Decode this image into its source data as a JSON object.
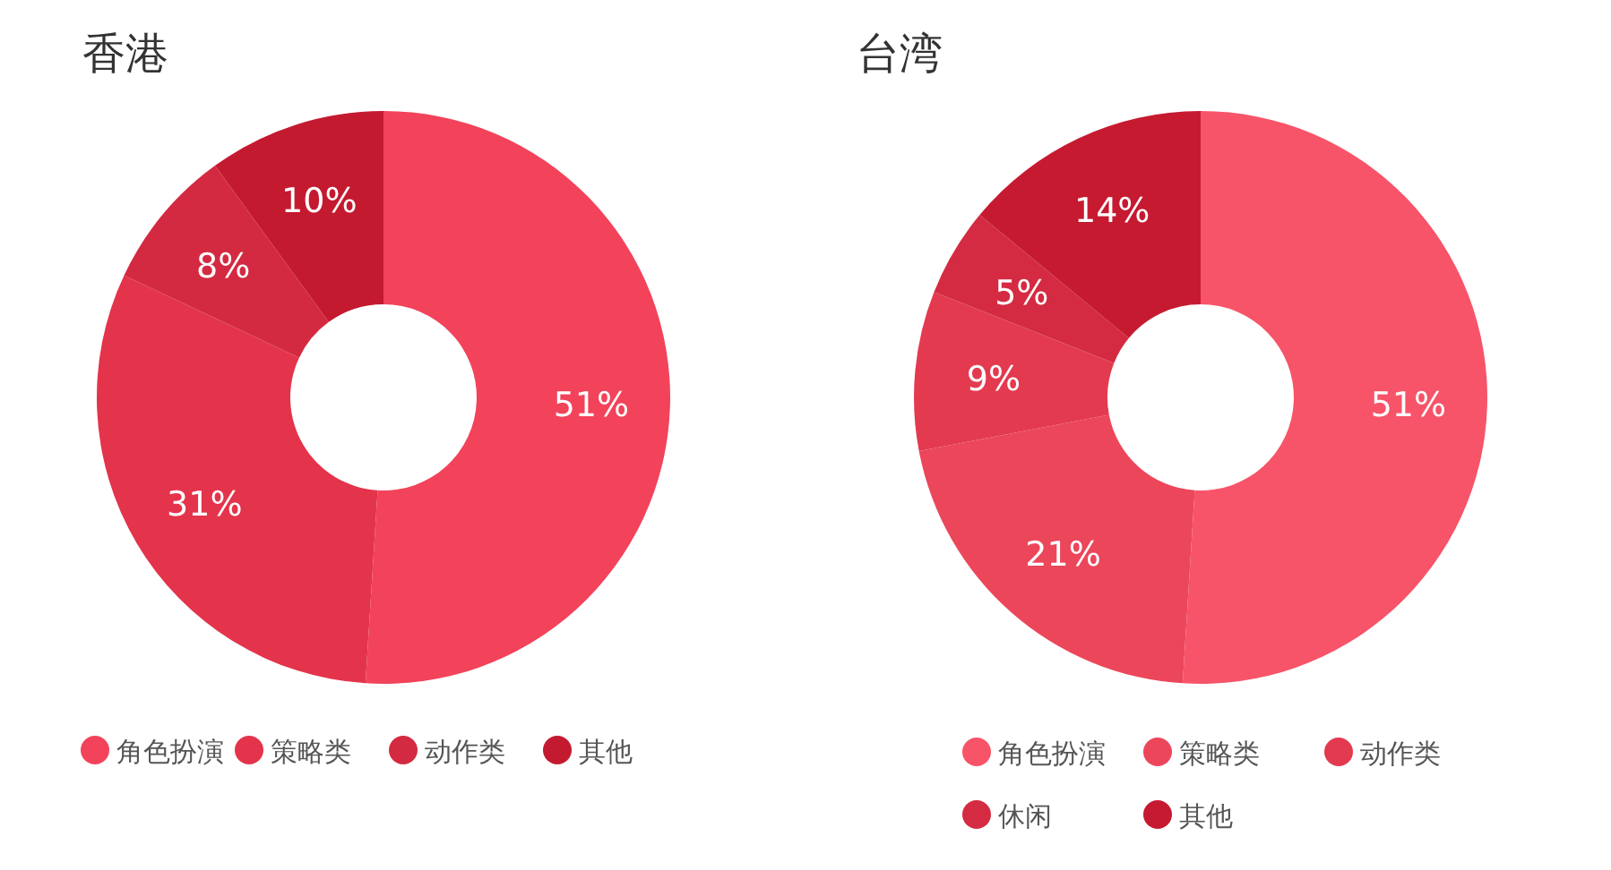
{
  "chart_data": [
    {
      "type": "donut",
      "title": "香港",
      "categories": [
        "角色扮演",
        "策略类",
        "动作类",
        "其他"
      ],
      "values": [
        51,
        31,
        8,
        10
      ],
      "value_labels": [
        "51%",
        "31%",
        "8%",
        "10%"
      ],
      "colors": [
        "#f2435a",
        "#e3344b",
        "#d42a41",
        "#c41a30"
      ],
      "legend": "bottom"
    },
    {
      "type": "donut",
      "title": "台湾",
      "categories": [
        "角色扮演",
        "策略类",
        "动作类",
        "休闲",
        "其他"
      ],
      "values": [
        51,
        21,
        9,
        5,
        14
      ],
      "value_labels": [
        "51%",
        "21%",
        "9%",
        "5%",
        "14%"
      ],
      "colors": [
        "#f75469",
        "#ec465b",
        "#e33a50",
        "#d42b42",
        "#c61a31"
      ],
      "legend": "bottom"
    }
  ]
}
